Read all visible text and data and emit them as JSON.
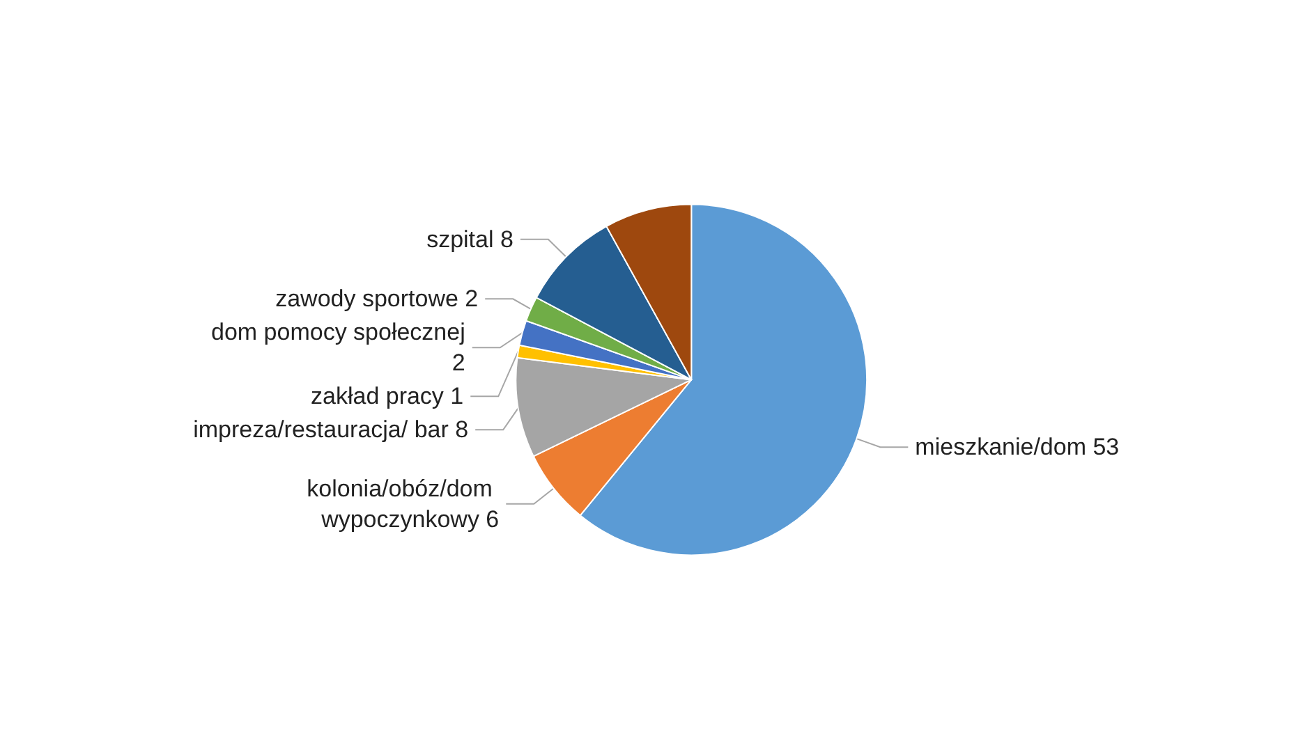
{
  "chart_data": {
    "type": "pie",
    "categories": [
      "mieszkanie/dom",
      "kolonia/obóz/dom wypoczynkowy",
      "impreza/restauracja/ bar",
      "zakład pracy",
      "dom pomocy społecznej",
      "zawody sportowe",
      "szpital",
      null
    ],
    "values": [
      53,
      6,
      8,
      1,
      2,
      2,
      8,
      7
    ],
    "value_labels": [
      "53",
      "6",
      "8",
      "1",
      "2",
      "2",
      "8",
      null
    ],
    "colors": [
      "#5b9bd5",
      "#ed7d31",
      "#a5a5a5",
      "#ffc000",
      "#4472c4",
      "#70ad47",
      "#255e91",
      "#9e480e"
    ],
    "legend": false
  }
}
